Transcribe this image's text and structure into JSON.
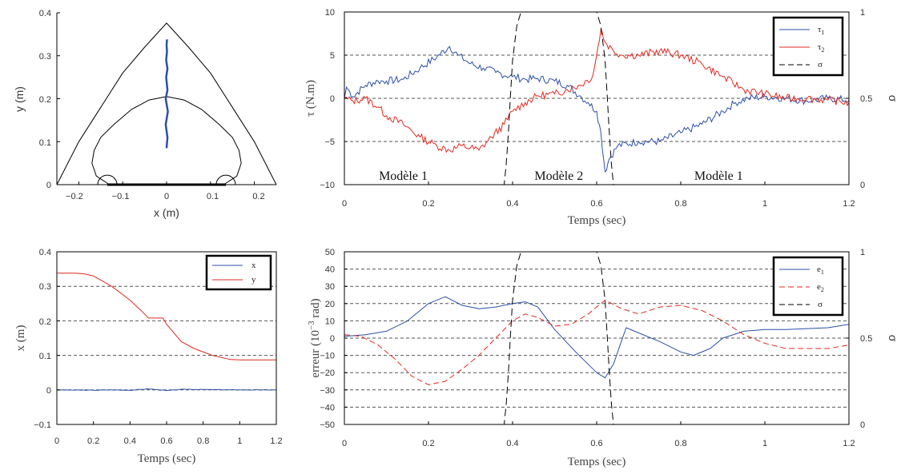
{
  "chart_data": [
    {
      "id": "workspace",
      "type": "line",
      "xlabel": "x (m)",
      "ylabel": "y (m)",
      "xlim": [
        -0.25,
        0.25
      ],
      "ylim": [
        0,
        0.4
      ],
      "xticks": [
        "−0.2",
        "−0.1",
        "0",
        "0.1",
        "0.2"
      ],
      "yticks": [
        "0",
        "0.1",
        "0.2",
        "0.3",
        "0.4"
      ],
      "colors": {
        "path": "#2c4fa8",
        "outline": "#000000"
      },
      "trajectory": {
        "x": [
          0,
          0.002,
          -0.002,
          0.003,
          -0.002,
          0.002,
          -0.001,
          0.002,
          -0.001,
          0.001,
          0,
          0.001
        ],
        "y": [
          0.085,
          0.11,
          0.14,
          0.17,
          0.2,
          0.22,
          0.25,
          0.27,
          0.29,
          0.31,
          0.325,
          0.338
        ]
      },
      "outer_boundary": {
        "x": [
          -0.25,
          -0.2,
          -0.15,
          -0.1,
          -0.05,
          0,
          0.05,
          0.1,
          0.15,
          0.2,
          0.25
        ],
        "y": [
          0,
          0.1,
          0.18,
          0.26,
          0.32,
          0.376,
          0.32,
          0.26,
          0.18,
          0.1,
          0
        ]
      },
      "inner_boundary": {
        "x": [
          -0.13,
          -0.16,
          -0.17,
          -0.165,
          -0.15,
          -0.12,
          -0.08,
          -0.04,
          0,
          0.04,
          0.08,
          0.12,
          0.15,
          0.165,
          0.17,
          0.16,
          0.13
        ],
        "y": [
          0,
          0.02,
          0.05,
          0.08,
          0.11,
          0.14,
          0.175,
          0.197,
          0.205,
          0.197,
          0.175,
          0.14,
          0.11,
          0.08,
          0.05,
          0.02,
          0
        ]
      },
      "base_segment": {
        "x": [
          -0.135,
          0.135
        ],
        "y": [
          0,
          0
        ]
      },
      "motor_arcs": [
        {
          "cx": -0.135,
          "r": 0.022
        },
        {
          "cx": 0.135,
          "r": 0.022
        }
      ]
    },
    {
      "id": "torques",
      "type": "line",
      "xlabel": "Temps (sec)",
      "ylabel": "τ (N.m)",
      "ylabel2": "σ",
      "xlim": [
        0,
        1.2
      ],
      "ylim": [
        -10,
        10
      ],
      "ylim2": [
        0,
        1
      ],
      "xticks": [
        "0",
        "0.2",
        "0.4",
        "0.6",
        "0.8",
        "1",
        "1.2"
      ],
      "yticks": [
        "−10",
        "−5",
        "0",
        "5",
        "10"
      ],
      "yticks2": [
        "0",
        "0.5",
        "1"
      ],
      "grid": true,
      "legend": "top-right",
      "annotations": [
        {
          "text": "Modèle 1",
          "x": 0.14
        },
        {
          "text": "Modèle 2",
          "x": 0.51
        },
        {
          "text": "Modèle 1",
          "x": 0.89
        }
      ],
      "series": [
        {
          "name": "τ",
          "sub": "1",
          "color": "#2c4fa8",
          "style": "solid",
          "axis": "left",
          "x": [
            0,
            0.005,
            0.02,
            0.05,
            0.08,
            0.1,
            0.14,
            0.18,
            0.22,
            0.25,
            0.27,
            0.3,
            0.33,
            0.36,
            0.4,
            0.43,
            0.46,
            0.5,
            0.53,
            0.56,
            0.58,
            0.6,
            0.61,
            0.62,
            0.63,
            0.65,
            0.7,
            0.75,
            0.8,
            0.85,
            0.9,
            0.93,
            0.96,
            1.0,
            1.05,
            1.1,
            1.15,
            1.2
          ],
          "y": [
            0,
            1.3,
            0.2,
            1.5,
            2.0,
            2.0,
            2.2,
            3.5,
            4.8,
            6.0,
            5.0,
            4.0,
            3.5,
            3.0,
            2.5,
            2.2,
            2.3,
            2.0,
            1.5,
            0.3,
            -0.5,
            -1.5,
            -4.0,
            -8.5,
            -7.0,
            -5.5,
            -5.0,
            -5.0,
            -4.0,
            -3.0,
            -1.5,
            -0.5,
            0.0,
            0.2,
            0.0,
            -0.3,
            0.0,
            -0.2
          ]
        },
        {
          "name": "τ",
          "sub": "2",
          "color": "#e02a20",
          "style": "solid",
          "axis": "left",
          "x": [
            0,
            0.02,
            0.05,
            0.08,
            0.1,
            0.14,
            0.18,
            0.22,
            0.25,
            0.28,
            0.32,
            0.35,
            0.38,
            0.4,
            0.43,
            0.46,
            0.5,
            0.53,
            0.56,
            0.59,
            0.6,
            0.61,
            0.62,
            0.64,
            0.66,
            0.7,
            0.75,
            0.8,
            0.85,
            0.9,
            0.95,
            1.0,
            1.05,
            1.1,
            1.15,
            1.2
          ],
          "y": [
            0,
            -0.3,
            0.0,
            -1.0,
            -2.0,
            -3.0,
            -4.5,
            -5.5,
            -6.0,
            -5.5,
            -6.0,
            -4.5,
            -3.0,
            -1.5,
            -0.5,
            0.3,
            0.5,
            1.0,
            1.5,
            2.5,
            5.0,
            8.0,
            6.5,
            5.5,
            5.0,
            5.0,
            5.5,
            5.0,
            4.0,
            2.5,
            1.0,
            0.5,
            0.0,
            0.0,
            -0.2,
            -0.5
          ]
        },
        {
          "name": "σ",
          "color": "#000000",
          "style": "dashed",
          "axis": "right",
          "x": [
            0,
            0.38,
            0.385,
            0.39,
            0.395,
            0.4,
            0.41,
            0.42,
            0.6,
            0.61,
            0.62,
            0.625,
            0.63,
            0.635,
            0.64,
            1.2
          ],
          "y": [
            0,
            0,
            0.12,
            0.3,
            0.52,
            0.72,
            0.92,
            1.0,
            1.0,
            0.92,
            0.72,
            0.52,
            0.3,
            0.12,
            0,
            0
          ]
        }
      ]
    },
    {
      "id": "positions",
      "type": "line",
      "xlabel": "Temps (sec)",
      "ylabel": "x (m)",
      "xlim": [
        0,
        1.2
      ],
      "ylim": [
        -0.1,
        0.4
      ],
      "xticks": [
        "0",
        "0.2",
        "0.4",
        "0.6",
        "0.8",
        "1",
        "1.2"
      ],
      "yticks": [
        "−0.1",
        "0",
        "0.1",
        "0.2",
        "0.3",
        "0.4"
      ],
      "grid": true,
      "legend": "top-right",
      "series": [
        {
          "name": "x",
          "color": "#2c4fa8",
          "style": "solid",
          "x": [
            0,
            0.2,
            0.3,
            0.4,
            0.5,
            0.6,
            0.7,
            0.8,
            1.0,
            1.2
          ],
          "y": [
            0,
            -0.001,
            0.0,
            -0.001,
            0.003,
            -0.002,
            0.002,
            0.001,
            0.0,
            0.0
          ]
        },
        {
          "name": "y",
          "color": "#e02a20",
          "style": "solid",
          "x": [
            0,
            0.1,
            0.15,
            0.2,
            0.3,
            0.4,
            0.48,
            0.5,
            0.58,
            0.6,
            0.68,
            0.75,
            0.85,
            0.95,
            1.0,
            1.2
          ],
          "y": [
            0.338,
            0.338,
            0.336,
            0.33,
            0.3,
            0.26,
            0.22,
            0.208,
            0.208,
            0.19,
            0.14,
            0.12,
            0.1,
            0.088,
            0.087,
            0.087
          ]
        }
      ]
    },
    {
      "id": "errors",
      "type": "line",
      "xlabel": "Temps (sec)",
      "ylabel": "erreur (10",
      "ylabel_sup": "−3",
      "ylabel_suffix": " rad)",
      "ylabel2": "σ",
      "xlim": [
        0,
        1.2
      ],
      "ylim": [
        -50,
        50
      ],
      "ylim2": [
        0,
        1
      ],
      "xticks": [
        "0",
        "0.2",
        "0.4",
        "0.6",
        "0.8",
        "1",
        "1.2"
      ],
      "yticks": [
        "−50",
        "−40",
        "−30",
        "−20",
        "−10",
        "0",
        "10",
        "20",
        "30",
        "40",
        "50"
      ],
      "yticks2": [
        "0",
        "0.5",
        "1"
      ],
      "grid": true,
      "legend": "top-right",
      "series": [
        {
          "name": "e",
          "sub": "1",
          "color": "#2c4fa8",
          "style": "solid",
          "axis": "left",
          "x": [
            0,
            0.05,
            0.1,
            0.15,
            0.2,
            0.24,
            0.28,
            0.32,
            0.36,
            0.4,
            0.43,
            0.46,
            0.5,
            0.55,
            0.6,
            0.62,
            0.64,
            0.67,
            0.7,
            0.75,
            0.8,
            0.83,
            0.87,
            0.9,
            0.95,
            1.0,
            1.05,
            1.1,
            1.15,
            1.2
          ],
          "y": [
            1,
            2,
            4,
            10,
            20,
            24,
            19,
            17,
            18,
            20,
            21,
            18,
            5,
            -8,
            -20,
            -23,
            -15,
            6,
            3,
            -2,
            -8,
            -10,
            -6,
            0,
            4,
            5,
            5,
            5.5,
            6,
            8
          ]
        },
        {
          "name": "e",
          "sub": "2",
          "color": "#e02a20",
          "style": "dashed",
          "axis": "left",
          "x": [
            0,
            0.04,
            0.08,
            0.12,
            0.16,
            0.2,
            0.24,
            0.28,
            0.32,
            0.36,
            0.4,
            0.43,
            0.46,
            0.5,
            0.54,
            0.58,
            0.62,
            0.66,
            0.7,
            0.75,
            0.8,
            0.85,
            0.9,
            0.95,
            1.0,
            1.05,
            1.1,
            1.15,
            1.2
          ],
          "y": [
            2,
            1,
            -4,
            -12,
            -22,
            -27,
            -25,
            -18,
            -10,
            0,
            10,
            14,
            12,
            7,
            8,
            14,
            22,
            17,
            14,
            18,
            19,
            16,
            10,
            2,
            -3,
            -6,
            -6,
            -6,
            -4
          ]
        },
        {
          "name": "σ",
          "color": "#000000",
          "style": "dashed",
          "axis": "right",
          "x": [
            0,
            0.38,
            0.385,
            0.39,
            0.395,
            0.4,
            0.41,
            0.42,
            0.6,
            0.61,
            0.62,
            0.625,
            0.63,
            0.635,
            0.64,
            1.2
          ],
          "y": [
            0,
            0,
            0.12,
            0.3,
            0.52,
            0.72,
            0.92,
            1.0,
            1.0,
            0.92,
            0.72,
            0.52,
            0.3,
            0.12,
            0,
            0
          ]
        }
      ]
    }
  ]
}
